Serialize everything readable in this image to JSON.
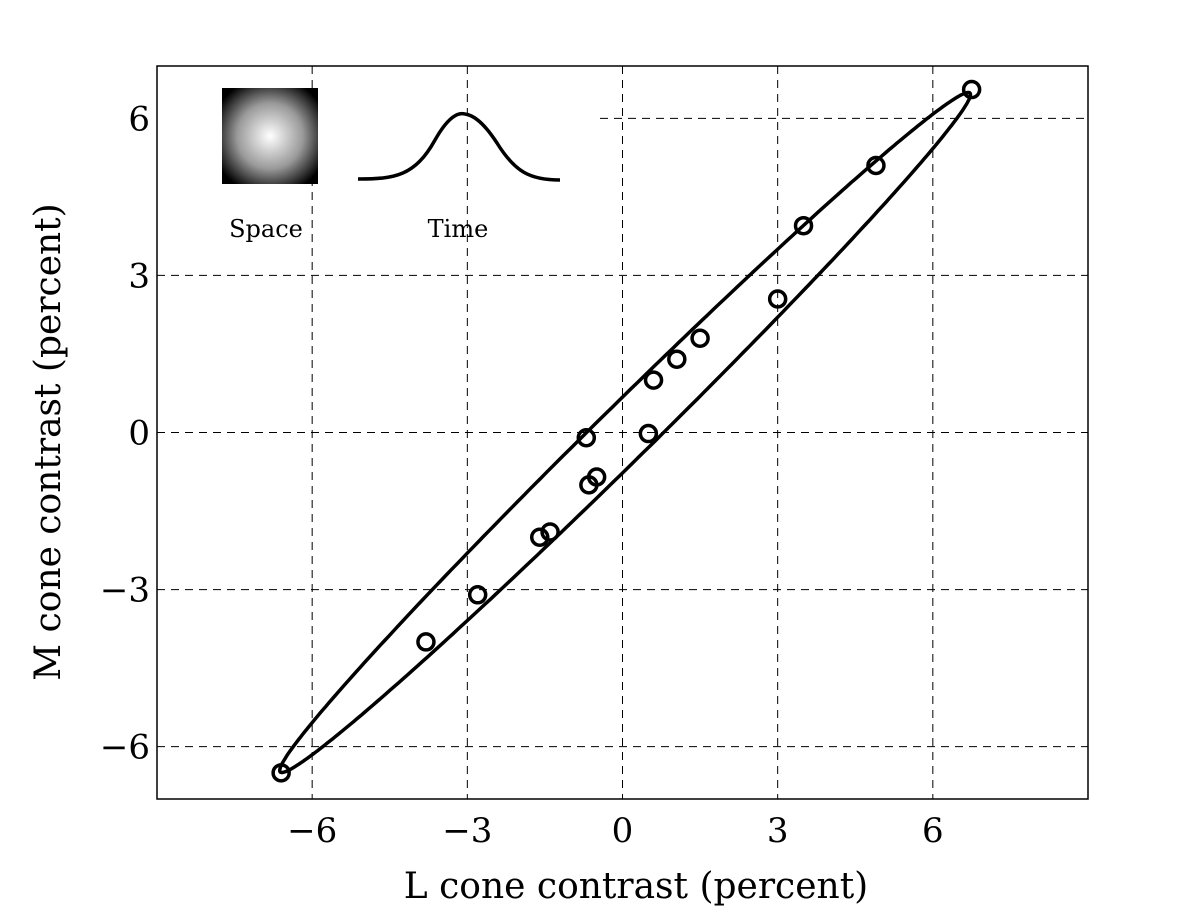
{
  "chart_data": {
    "type": "scatter",
    "xlabel": "L cone contrast (percent)",
    "ylabel": "M cone contrast (percent)",
    "xlim": [
      -9,
      9
    ],
    "ylim": [
      -7,
      7
    ],
    "xticks": [
      "−6",
      "−3",
      "0",
      "3",
      "6"
    ],
    "yticks": [
      "−6",
      "−3",
      "0",
      "3",
      "6"
    ],
    "xtick_values": [
      -6,
      -3,
      0,
      3,
      6
    ],
    "ytick_values": [
      -6,
      -3,
      0,
      3,
      6
    ],
    "grid": true,
    "inset": {
      "space_label": "Space",
      "time_label": "Time"
    },
    "points": [
      {
        "x": -6.6,
        "y": -6.5
      },
      {
        "x": -3.8,
        "y": -4.0
      },
      {
        "x": -2.8,
        "y": -3.1
      },
      {
        "x": -1.6,
        "y": -2.0
      },
      {
        "x": -1.4,
        "y": -1.9
      },
      {
        "x": -0.65,
        "y": -1.0
      },
      {
        "x": -0.5,
        "y": -0.85
      },
      {
        "x": -0.7,
        "y": -0.1
      },
      {
        "x": 0.5,
        "y": -0.02
      },
      {
        "x": 0.6,
        "y": 1.0
      },
      {
        "x": 1.05,
        "y": 1.4
      },
      {
        "x": 1.5,
        "y": 1.8
      },
      {
        "x": 3.0,
        "y": 2.55
      },
      {
        "x": 3.5,
        "y": 3.95
      },
      {
        "x": 4.9,
        "y": 5.1
      },
      {
        "x": 6.75,
        "y": 6.55
      }
    ],
    "ellipse": {
      "center": [
        0.05,
        0.0
      ],
      "semi_major": 9.3,
      "semi_minor": 0.52,
      "angle_deg": 44.2
    }
  }
}
